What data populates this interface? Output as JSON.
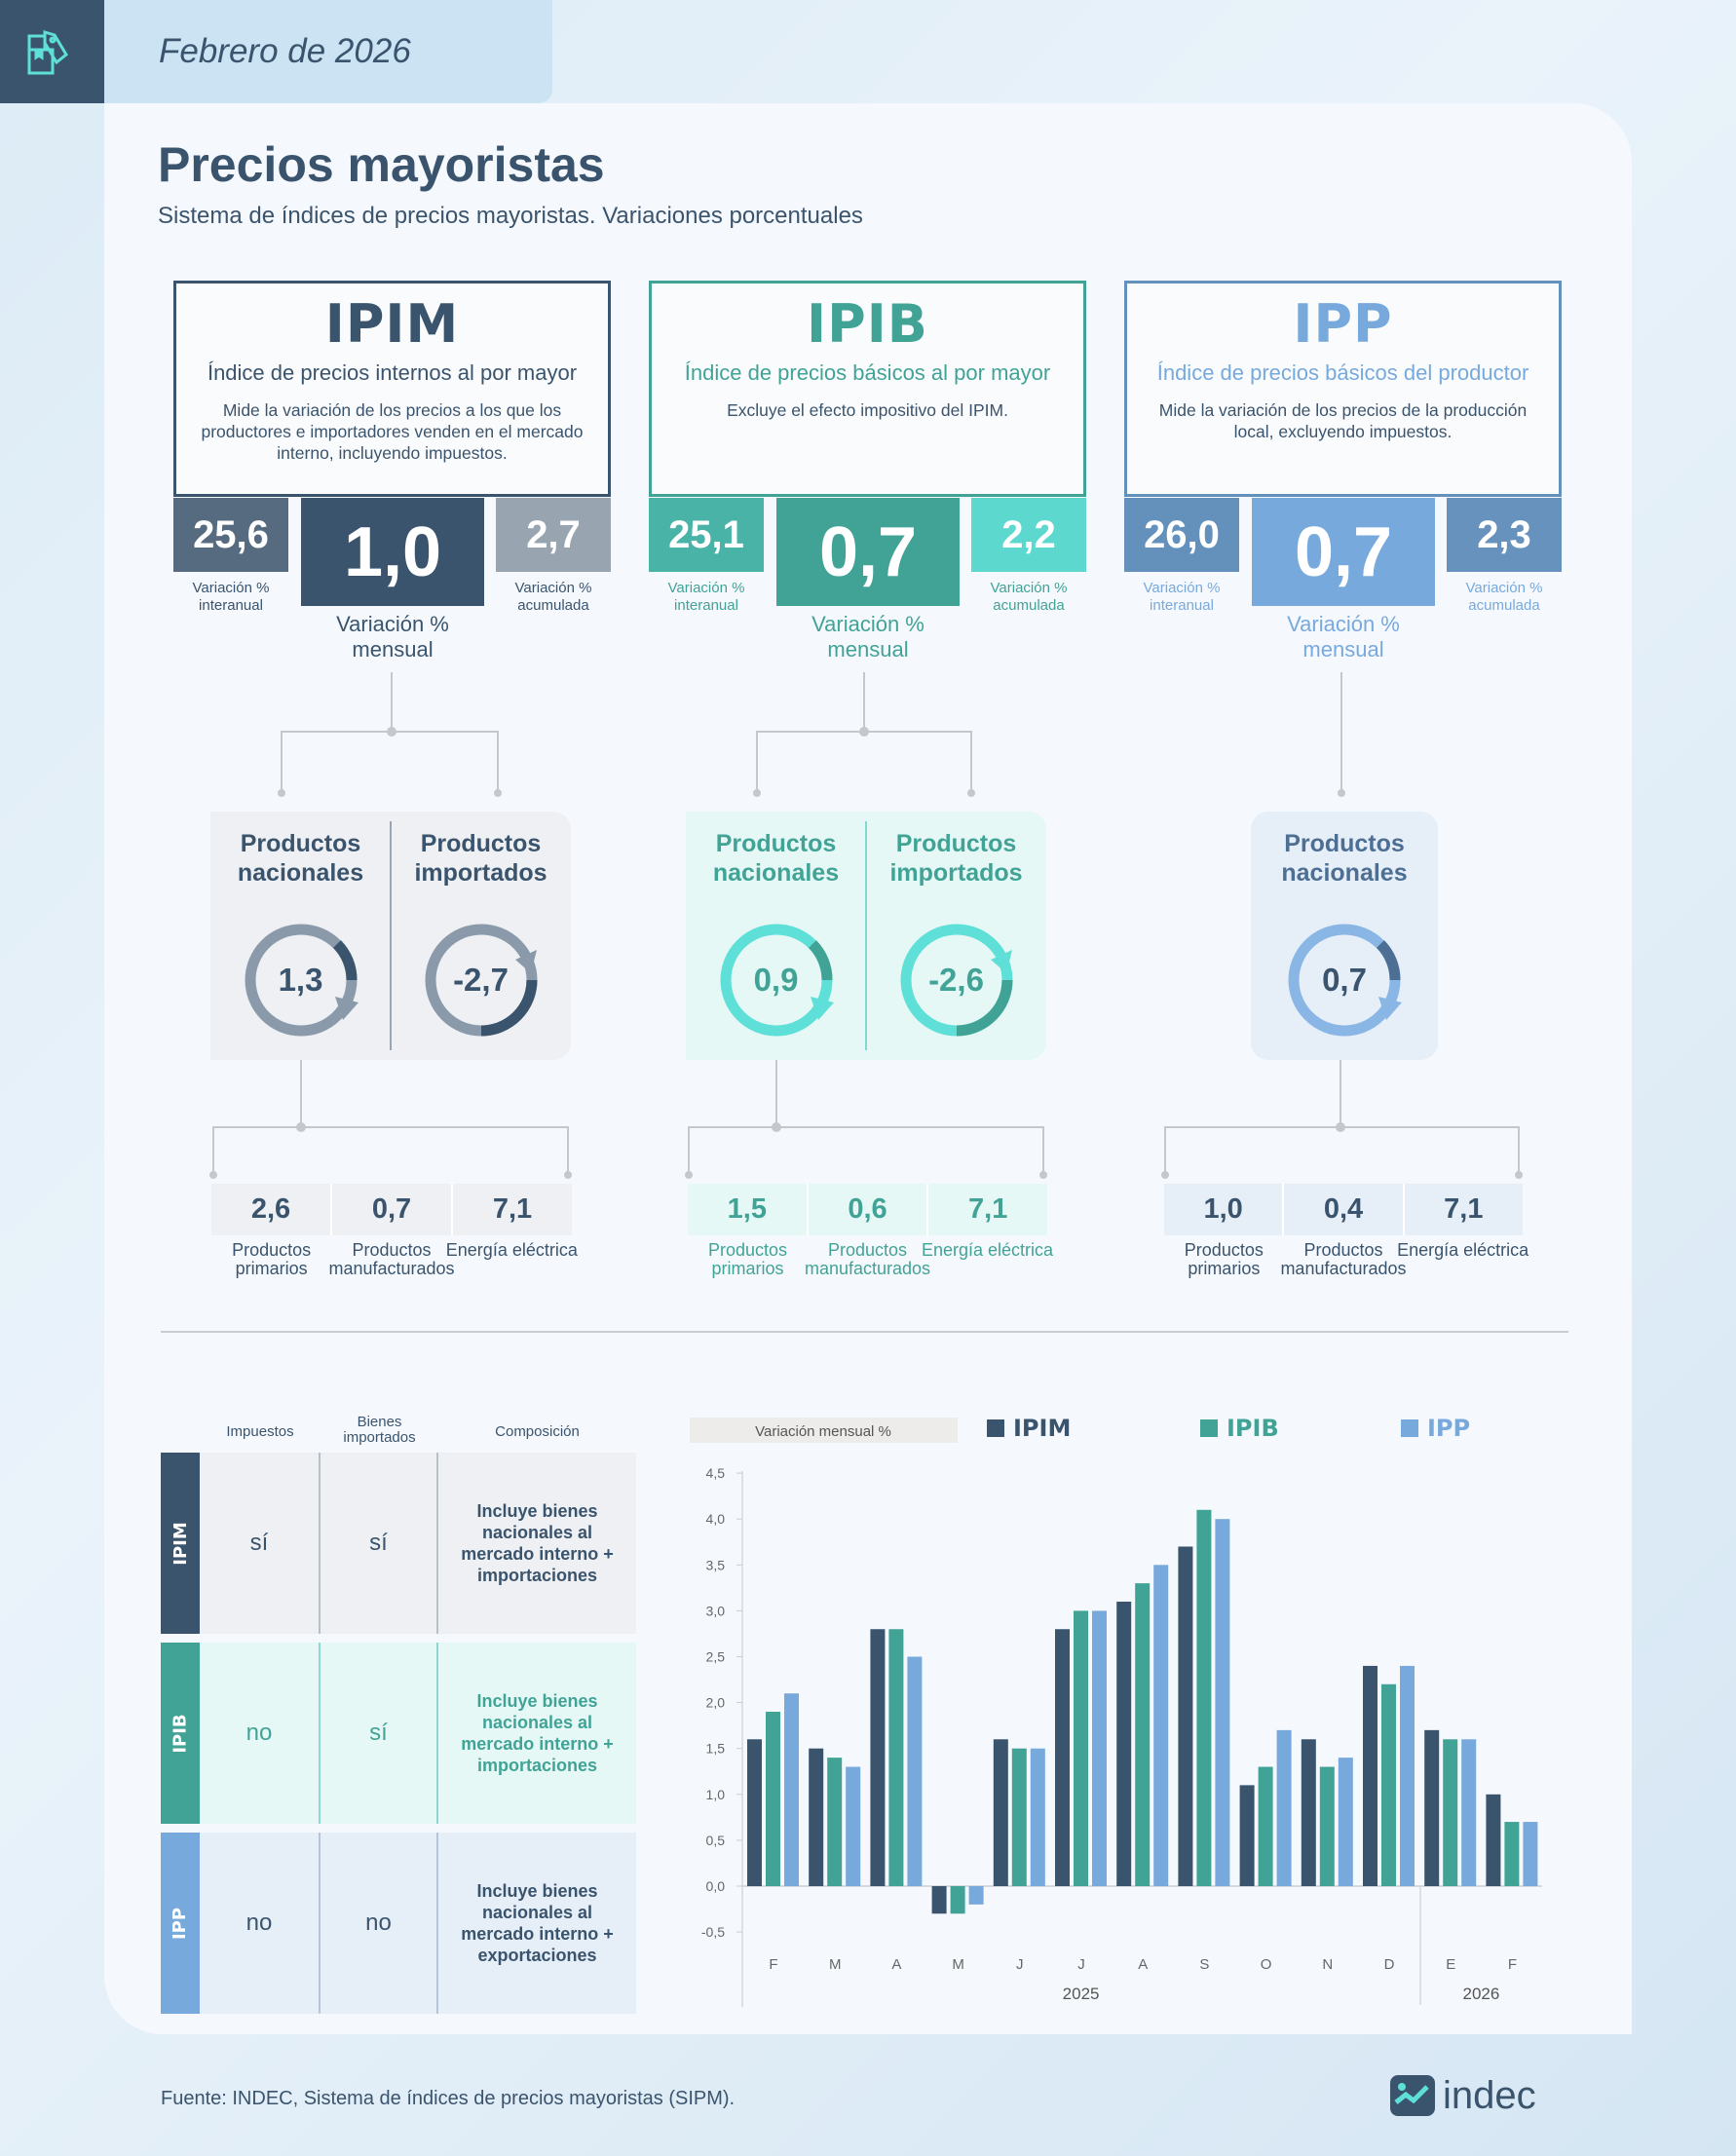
{
  "header": {
    "date": "Febrero de 2026"
  },
  "title": "Precios mayoristas",
  "subtitle": "Sistema de índices de precios mayoristas. Variaciones porcentuales",
  "colors": {
    "ipim": "#3b546d",
    "ipib": "#41a396",
    "ipp": "#78a9dc"
  },
  "indices": [
    {
      "acronym": "IPIM",
      "name": "Índice de precios internos al por mayor",
      "description": "Mide la variación de los precios a los que los productores e importadores venden en el mercado interno, incluyendo impuestos.",
      "interanual": {
        "value": "25,6",
        "label": "Variación % interanual"
      },
      "mensual": {
        "value": "1,0",
        "label": "Variación % mensual"
      },
      "acumulada": {
        "value": "2,7",
        "label": "Variación % acumulada"
      },
      "categories": [
        {
          "label": "Productos nacionales",
          "value": "1,3"
        },
        {
          "label": "Productos importados",
          "value": "-2,7"
        }
      ],
      "subcategories": [
        {
          "value": "2,6",
          "label": "Productos primarios"
        },
        {
          "value": "0,7",
          "label": "Productos manufacturados"
        },
        {
          "value": "7,1",
          "label": "Energía eléctrica"
        }
      ]
    },
    {
      "acronym": "IPIB",
      "name": "Índice de precios básicos al por mayor",
      "description": "Excluye el efecto impositivo del IPIM.",
      "interanual": {
        "value": "25,1",
        "label": "Variación % interanual"
      },
      "mensual": {
        "value": "0,7",
        "label": "Variación % mensual"
      },
      "acumulada": {
        "value": "2,2",
        "label": "Variación % acumulada"
      },
      "categories": [
        {
          "label": "Productos nacionales",
          "value": "0,9"
        },
        {
          "label": "Productos importados",
          "value": "-2,6"
        }
      ],
      "subcategories": [
        {
          "value": "1,5",
          "label": "Productos primarios"
        },
        {
          "value": "0,6",
          "label": "Productos manufacturados"
        },
        {
          "value": "7,1",
          "label": "Energía eléctrica"
        }
      ]
    },
    {
      "acronym": "IPP",
      "name": "Índice de precios básicos del productor",
      "description": "Mide la variación de los precios de la producción local, excluyendo impuestos.",
      "interanual": {
        "value": "26,0",
        "label": "Variación % interanual"
      },
      "mensual": {
        "value": "0,7",
        "label": "Variación % mensual"
      },
      "acumulada": {
        "value": "2,3",
        "label": "Variación % acumulada"
      },
      "categories": [
        {
          "label": "Productos nacionales",
          "value": "0,7"
        }
      ],
      "subcategories": [
        {
          "value": "1,0",
          "label": "Productos primarios"
        },
        {
          "value": "0,4",
          "label": "Productos manufacturados"
        },
        {
          "value": "7,1",
          "label": "Energía eléctrica"
        }
      ]
    }
  ],
  "table": {
    "headers": {
      "impuestos": "Impuestos",
      "importados": "Bienes importados",
      "composicion": "Composición"
    },
    "rows": [
      {
        "index": "IPIM",
        "impuestos": "sí",
        "importados": "sí",
        "composicion": "Incluye bienes nacionales al mercado interno + importaciones"
      },
      {
        "index": "IPIB",
        "impuestos": "no",
        "importados": "sí",
        "composicion": "Incluye bienes nacionales al mercado interno + importaciones"
      },
      {
        "index": "IPP",
        "impuestos": "no",
        "importados": "no",
        "composicion": "Incluye bienes nacionales al mercado interno + exportaciones"
      }
    ]
  },
  "chart_data": {
    "type": "bar",
    "title": "Variación mensual %",
    "ylabel": "Variación mensual %",
    "ylim": [
      -0.5,
      4.5
    ],
    "yticks": [
      "4,5",
      "4,0",
      "3,5",
      "3,0",
      "2,5",
      "2,0",
      "1,5",
      "1,0",
      "0,5",
      "0,0",
      "-0,5"
    ],
    "categories": [
      "F",
      "M",
      "A",
      "M",
      "J",
      "J",
      "A",
      "S",
      "O",
      "N",
      "D",
      "E",
      "F"
    ],
    "years": [
      {
        "label": "2025",
        "months": 11
      },
      {
        "label": "2026",
        "months": 2
      }
    ],
    "series": [
      {
        "name": "IPIM",
        "color": "#3b546d",
        "values": [
          1.6,
          1.5,
          2.8,
          -0.3,
          1.6,
          2.8,
          3.1,
          3.7,
          1.1,
          1.6,
          2.4,
          1.7,
          1.0
        ]
      },
      {
        "name": "IPIB",
        "color": "#41a396",
        "values": [
          1.9,
          1.4,
          2.8,
          -0.3,
          1.5,
          3.0,
          3.3,
          4.1,
          1.3,
          1.3,
          2.2,
          1.6,
          0.7
        ]
      },
      {
        "name": "IPP",
        "color": "#78a9dc",
        "values": [
          2.1,
          1.3,
          2.5,
          -0.2,
          1.5,
          3.0,
          3.5,
          4.0,
          1.7,
          1.4,
          2.4,
          1.6,
          0.7
        ]
      }
    ],
    "legend": "top"
  },
  "footer": {
    "source": "Fuente: INDEC, Sistema de índices de precios mayoristas (SIPM)."
  },
  "logo": "indec"
}
